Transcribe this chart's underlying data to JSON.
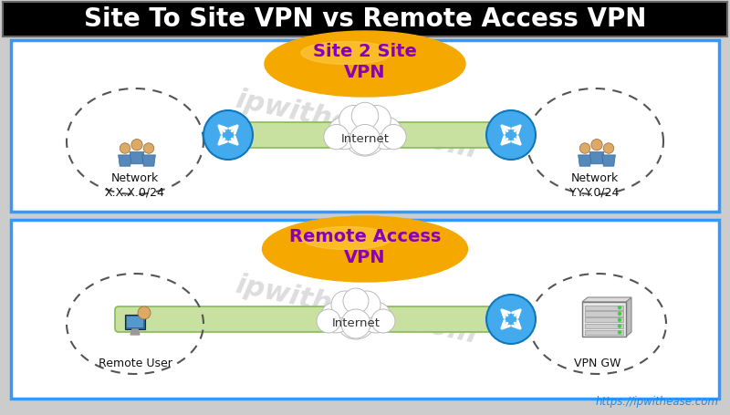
{
  "title": "Site To Site VPN vs Remote Access VPN",
  "title_bg": "#000000",
  "title_color": "#ffffff",
  "title_fontsize": 20,
  "fig_bg": "#cccccc",
  "panel_bg": "#ffffff",
  "panel_border": "#3399ff",
  "s2s_label": "Site 2 Site\nVPN",
  "s2s_label_color": "#8800bb",
  "ra_label": "Remote Access\nVPN",
  "ra_label_color": "#8800bb",
  "internet_label": "Internet",
  "oval_fill": "#f5a800",
  "oval_highlight": "#ffd050",
  "router_fill": "#44aaee",
  "router_edge": "#1177bb",
  "green_fill": "#c8e0a0",
  "green_edge": "#88bb55",
  "dashed_color": "#555555",
  "network_xxxx": "Network\nX.X.X.0/24",
  "network_yyyy": "Network\nY.Y.Y.0/24",
  "remote_user_label": "Remote User",
  "vpn_gw_label": "VPN GW",
  "watermark": "ipwithease.com",
  "watermark_color": "#bbbbbb",
  "url_text": "https://ipwithease.com",
  "url_color": "#2288dd"
}
